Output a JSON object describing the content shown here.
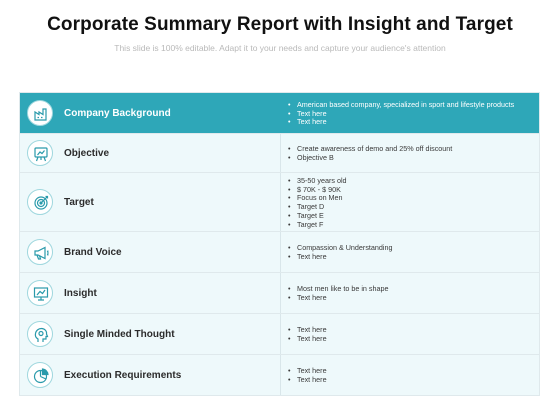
{
  "page": {
    "title": "Corporate Summary Report with Insight and Target",
    "subtitle": "This slide is 100% editable. Adapt it to your needs and capture your audience's attention"
  },
  "colors": {
    "accent": "#2ea7b8",
    "row_background": "#eef9fb",
    "icon_stroke": "#2a9aab"
  },
  "rows": [
    {
      "label": "Company Background",
      "icon": "factory-icon",
      "bullets": [
        "American based company, specialized in sport and lifestyle products",
        "Text here",
        "Text here"
      ]
    },
    {
      "label": "Objective",
      "icon": "presentation-board-icon",
      "bullets": [
        "Create awareness of demo and 25% off discount",
        "Objective B"
      ]
    },
    {
      "label": "Target",
      "icon": "target-icon",
      "bullets": [
        "35-50 years old",
        "$ 70K - $ 90K",
        "Focus on Men",
        "Target D",
        "Target E",
        "Target F"
      ]
    },
    {
      "label": "Brand Voice",
      "icon": "bullhorn-icon",
      "bullets": [
        "Compassion & Understanding",
        "Text here"
      ]
    },
    {
      "label": "Insight",
      "icon": "analytics-board-icon",
      "bullets": [
        "Most men like to be in shape",
        "Text here"
      ]
    },
    {
      "label": "Single Minded Thought",
      "icon": "head-idea-icon",
      "bullets": [
        "Text here",
        "Text here"
      ]
    },
    {
      "label": "Execution Requirements",
      "icon": "pie-chart-icon",
      "bullets": [
        "Text here",
        "Text here"
      ]
    }
  ]
}
